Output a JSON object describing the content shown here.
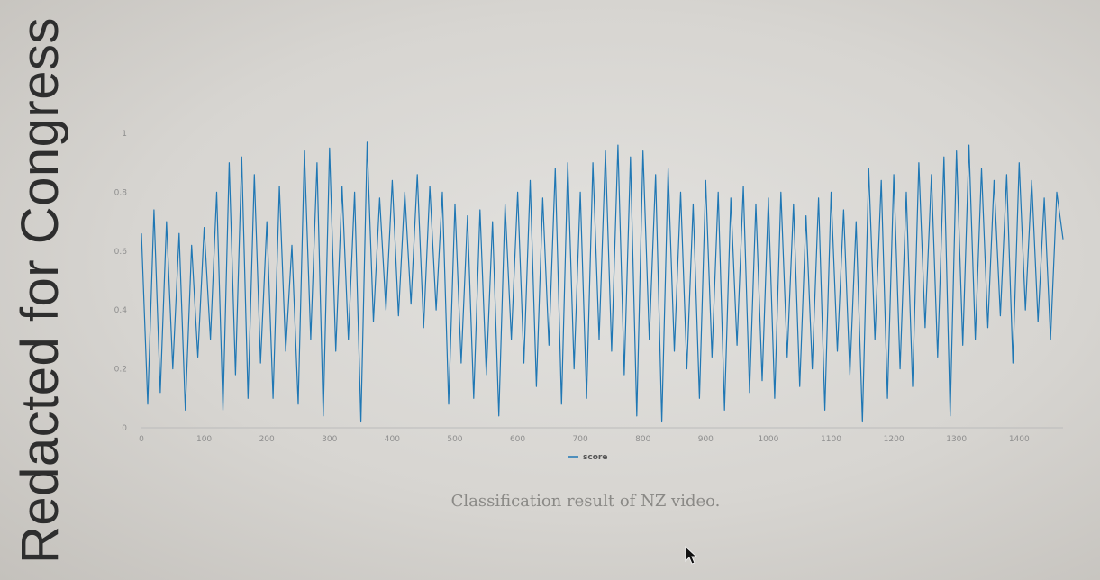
{
  "redaction_text": "Redacted for Congress",
  "caption": "Classification result of NZ video.",
  "colors": {
    "series": "#1f77b4",
    "axis": "#bbbbbb",
    "tick_text": "#8e8e8e"
  },
  "chart_data": {
    "type": "line",
    "title": "",
    "xlabel": "",
    "ylabel": "",
    "xlim": [
      0,
      1470
    ],
    "ylim": [
      0,
      1
    ],
    "xticks": [
      0,
      100,
      200,
      300,
      400,
      500,
      600,
      700,
      800,
      900,
      1000,
      1100,
      1200,
      1300,
      1400
    ],
    "yticks": [
      0,
      0.2,
      0.4,
      0.6,
      0.8,
      1
    ],
    "ytick_labels": [
      "0",
      "0.2",
      "0.4",
      "0.6",
      "0.8",
      "1"
    ],
    "grid": false,
    "legend": {
      "position": "bottom-center",
      "entries": [
        "score"
      ]
    },
    "series": [
      {
        "name": "score",
        "x": [
          0,
          10,
          20,
          30,
          40,
          50,
          60,
          70,
          80,
          90,
          100,
          110,
          120,
          130,
          140,
          150,
          160,
          170,
          180,
          190,
          200,
          210,
          220,
          230,
          240,
          250,
          260,
          270,
          280,
          290,
          300,
          310,
          320,
          330,
          340,
          350,
          360,
          370,
          380,
          390,
          400,
          410,
          420,
          430,
          440,
          450,
          460,
          470,
          480,
          490,
          500,
          510,
          520,
          530,
          540,
          550,
          560,
          570,
          580,
          590,
          600,
          610,
          620,
          630,
          640,
          650,
          660,
          670,
          680,
          690,
          700,
          710,
          720,
          730,
          740,
          750,
          760,
          770,
          780,
          790,
          800,
          810,
          820,
          830,
          840,
          850,
          860,
          870,
          880,
          890,
          900,
          910,
          920,
          930,
          940,
          950,
          960,
          970,
          980,
          990,
          1000,
          1010,
          1020,
          1030,
          1040,
          1050,
          1060,
          1070,
          1080,
          1090,
          1100,
          1110,
          1120,
          1130,
          1140,
          1150,
          1160,
          1170,
          1180,
          1190,
          1200,
          1210,
          1220,
          1230,
          1240,
          1250,
          1260,
          1270,
          1280,
          1290,
          1300,
          1310,
          1320,
          1330,
          1340,
          1350,
          1360,
          1370,
          1380,
          1390,
          1400,
          1410,
          1420,
          1430,
          1440,
          1450,
          1460,
          1470
        ],
        "values": [
          0.66,
          0.08,
          0.74,
          0.12,
          0.7,
          0.2,
          0.66,
          0.06,
          0.62,
          0.24,
          0.68,
          0.3,
          0.8,
          0.06,
          0.9,
          0.18,
          0.92,
          0.1,
          0.86,
          0.22,
          0.7,
          0.1,
          0.82,
          0.26,
          0.62,
          0.08,
          0.94,
          0.3,
          0.9,
          0.04,
          0.95,
          0.26,
          0.82,
          0.3,
          0.8,
          0.02,
          0.97,
          0.36,
          0.78,
          0.4,
          0.84,
          0.38,
          0.8,
          0.42,
          0.86,
          0.34,
          0.82,
          0.4,
          0.8,
          0.08,
          0.76,
          0.22,
          0.72,
          0.1,
          0.74,
          0.18,
          0.7,
          0.04,
          0.76,
          0.3,
          0.8,
          0.22,
          0.84,
          0.14,
          0.78,
          0.28,
          0.88,
          0.08,
          0.9,
          0.2,
          0.8,
          0.1,
          0.9,
          0.3,
          0.94,
          0.26,
          0.96,
          0.18,
          0.92,
          0.04,
          0.94,
          0.3,
          0.86,
          0.02,
          0.88,
          0.26,
          0.8,
          0.2,
          0.76,
          0.1,
          0.84,
          0.24,
          0.8,
          0.06,
          0.78,
          0.28,
          0.82,
          0.12,
          0.76,
          0.16,
          0.78,
          0.1,
          0.8,
          0.24,
          0.76,
          0.14,
          0.72,
          0.2,
          0.78,
          0.06,
          0.8,
          0.26,
          0.74,
          0.18,
          0.7,
          0.02,
          0.88,
          0.3,
          0.84,
          0.1,
          0.86,
          0.2,
          0.8,
          0.14,
          0.9,
          0.34,
          0.86,
          0.24,
          0.92,
          0.04,
          0.94,
          0.28,
          0.96,
          0.3,
          0.88,
          0.34,
          0.84,
          0.38,
          0.86,
          0.22,
          0.9,
          0.4,
          0.84,
          0.36,
          0.78,
          0.3,
          0.8,
          0.64
        ]
      }
    ]
  }
}
